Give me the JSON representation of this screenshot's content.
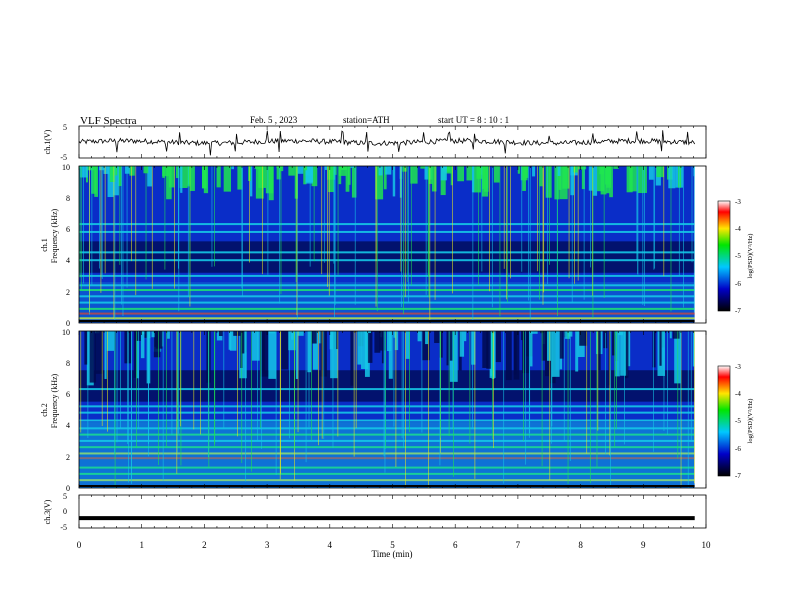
{
  "header": {
    "title": "VLF Spectra",
    "date": "Feb. 5 , 2023",
    "station": "station=ATH",
    "start_ut": "start UT = 8 : 10 : 1"
  },
  "axes": {
    "x_label": "Time (min)",
    "ch1_label": "ch.1(V)",
    "ch3_label": "ch.3(V)",
    "ch1_freq_label": "ch.1",
    "ch2_freq_label": "ch.2",
    "freq_label": "Frequency (kHz)",
    "colorbar_label": "log(PSD)(V²/Hz)"
  },
  "chart_data": [
    {
      "type": "line",
      "name": "ch1-waveform",
      "ylabel": "ch.1(V)",
      "ylim": [
        -5,
        5
      ],
      "yticks": [
        "5",
        "-5"
      ],
      "xlim": [
        0,
        10
      ],
      "approx_level": 0,
      "spike_times": [
        0.6,
        1.4,
        1.6,
        2.1,
        2.5,
        3.0,
        3.2,
        4.2,
        4.6,
        5.1,
        5.5,
        5.9,
        6.3,
        6.8,
        7.5,
        8.2,
        8.9,
        9.3,
        9.7
      ]
    },
    {
      "type": "heatmap",
      "name": "ch1-spectrogram",
      "ylabel": "Frequency (kHz)",
      "ylim": [
        0,
        10
      ],
      "yticks": [
        "0",
        "2",
        "4",
        "6",
        "8",
        "10"
      ],
      "xlim": [
        0,
        9.82
      ],
      "colorbar": {
        "range": [
          -7,
          -3
        ],
        "ticks": [
          "-3",
          "-4",
          "-5",
          "-6",
          "-7"
        ]
      }
    },
    {
      "type": "heatmap",
      "name": "ch2-spectrogram",
      "ylabel": "Frequency (kHz)",
      "ylim": [
        0,
        10
      ],
      "yticks": [
        "0",
        "2",
        "4",
        "6",
        "8",
        "10"
      ],
      "xlim": [
        0,
        9.82
      ],
      "colorbar": {
        "range": [
          -7,
          -3
        ],
        "ticks": [
          "-3",
          "-4",
          "-5",
          "-6",
          "-7"
        ]
      }
    },
    {
      "type": "line",
      "name": "ch3-waveform",
      "ylabel": "ch.3(V)",
      "ylim": [
        -5,
        5
      ],
      "yticks": [
        "5",
        "0",
        "-5"
      ],
      "xlim": [
        0,
        10
      ],
      "approx_level": -2
    }
  ],
  "x_axis": {
    "range": [
      0,
      10
    ],
    "ticks": [
      "0",
      "1",
      "2",
      "3",
      "4",
      "5",
      "6",
      "7",
      "8",
      "9",
      "10"
    ]
  },
  "colors": {
    "bg_dark": "#000a50",
    "bg_blue": "#0a2dc8",
    "cyan": "#15c8e6",
    "green": "#1ee650",
    "yellow": "#e6e61e",
    "red": "#e61e1e"
  }
}
